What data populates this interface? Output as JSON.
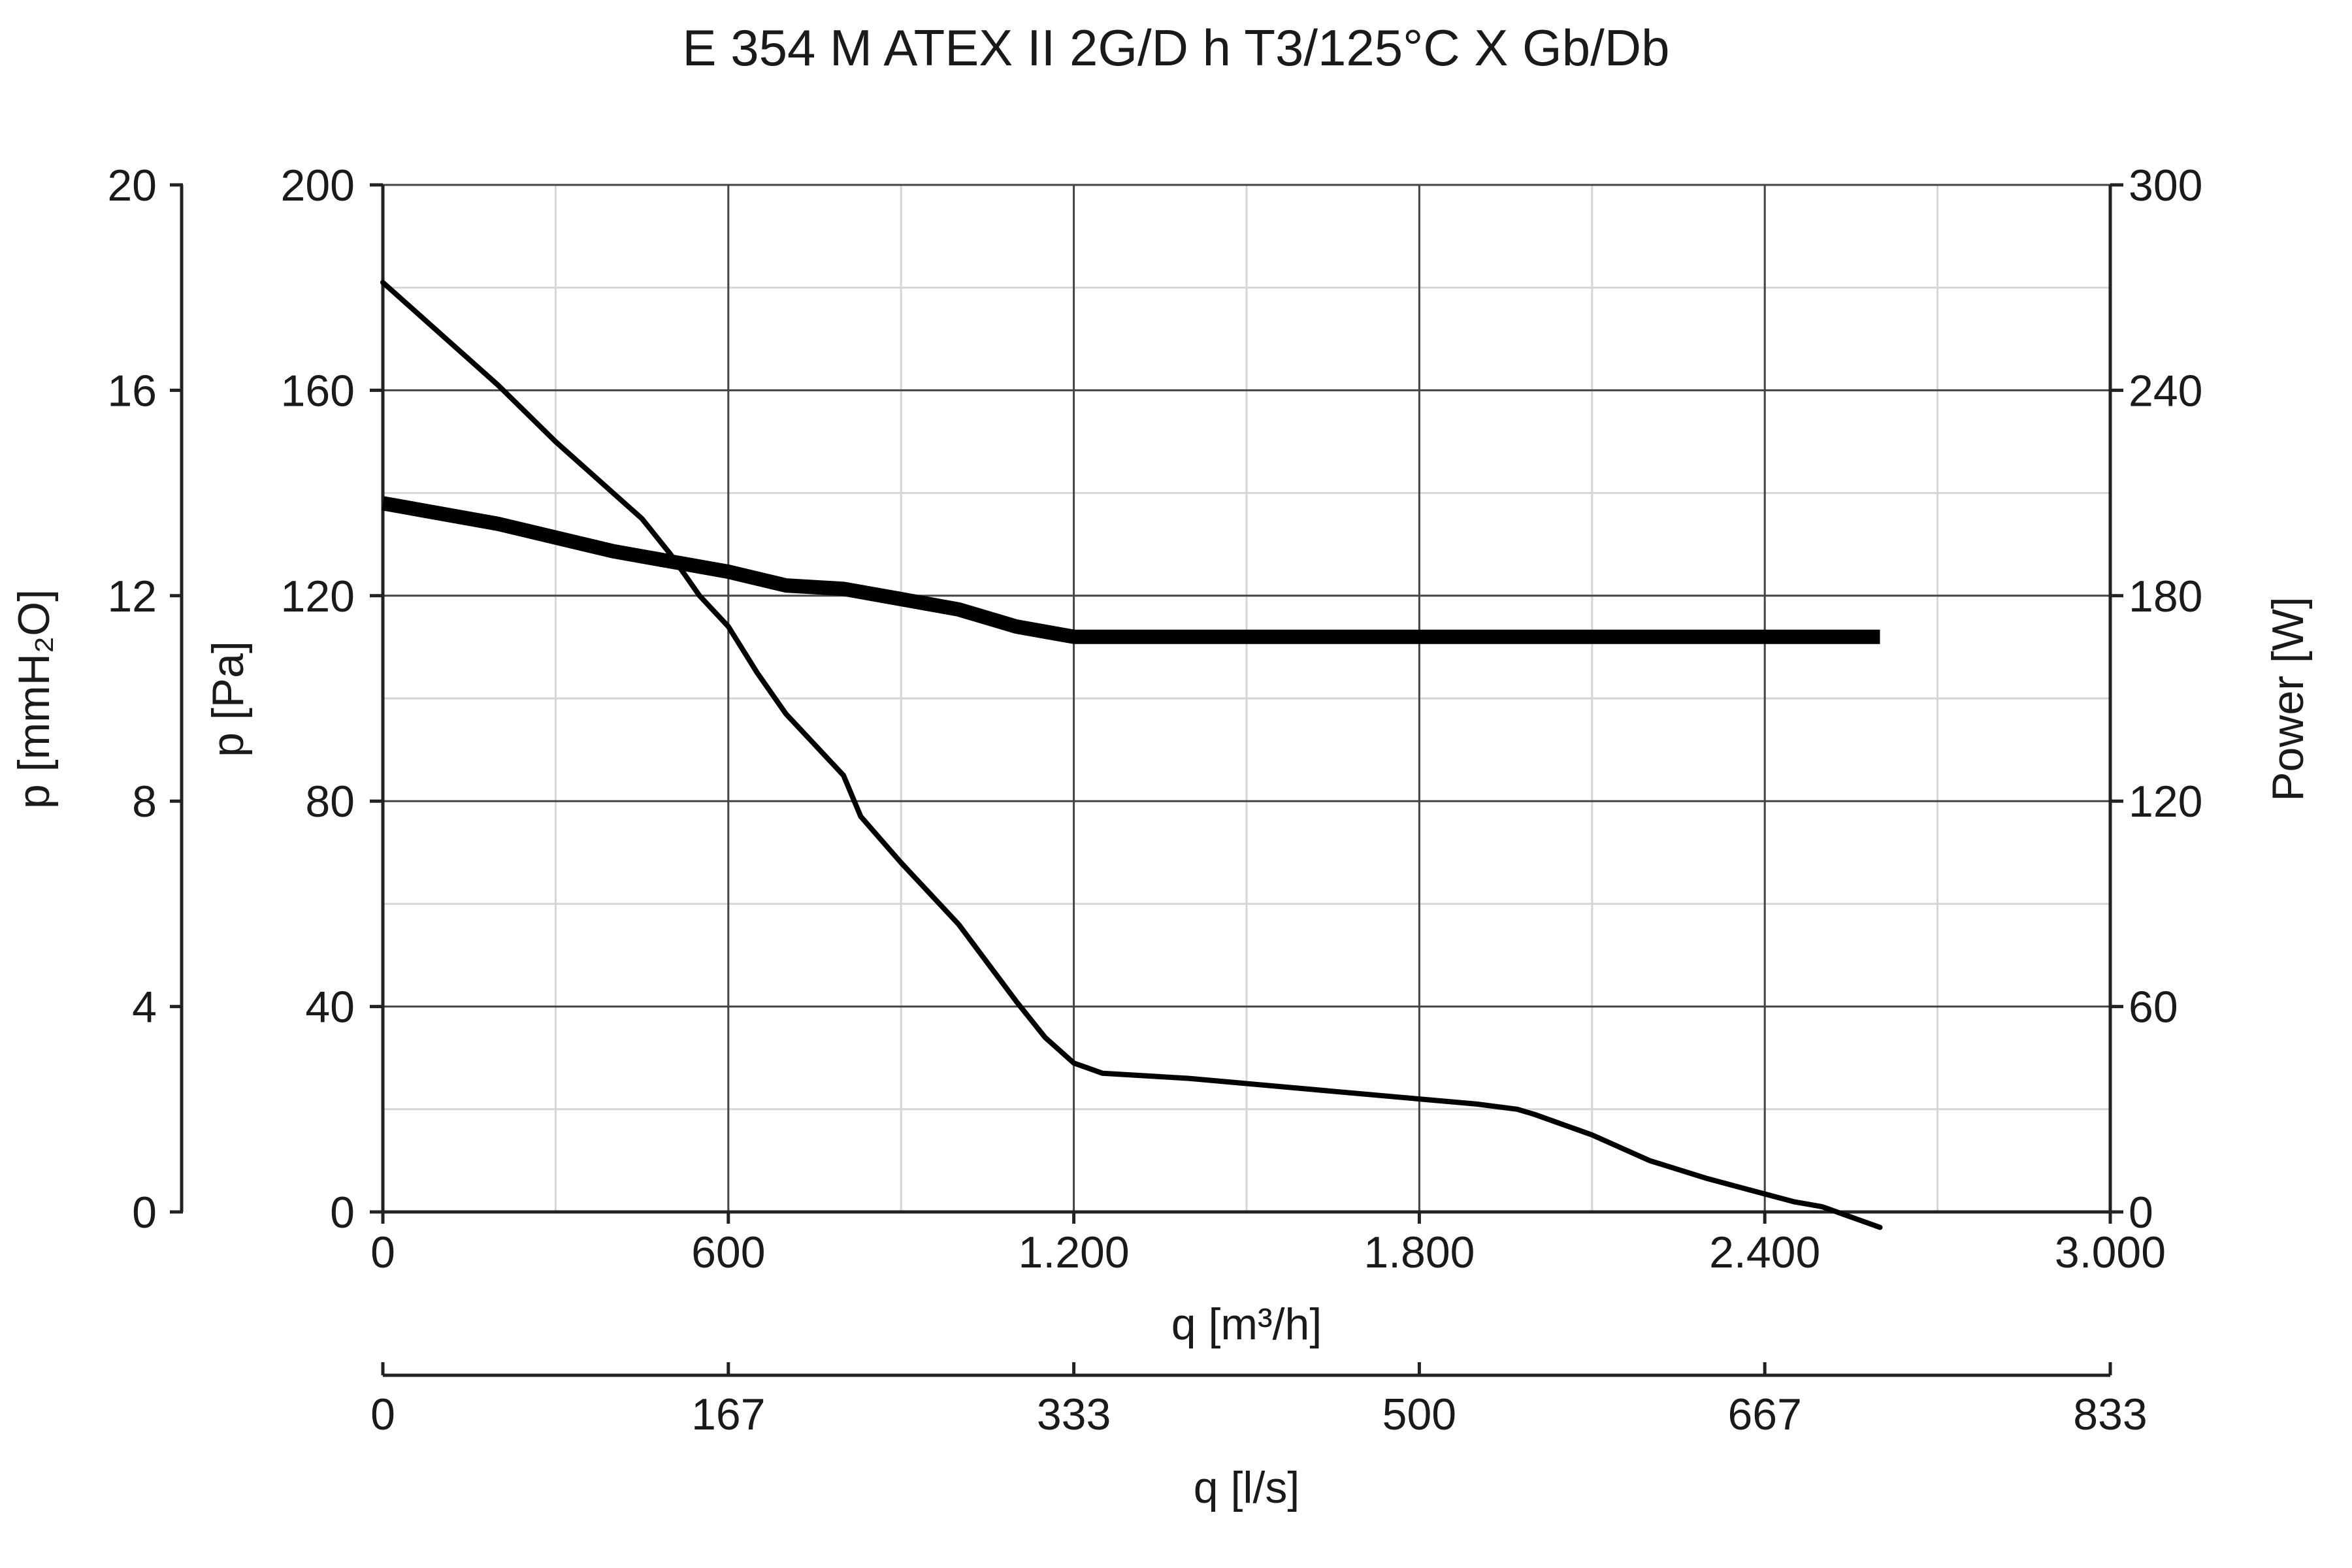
{
  "chart_data": {
    "type": "line",
    "title": "E 354 M ATEX II 2G/D h T3/125°C X Gb/Db",
    "xlabel": "q [m³/h]",
    "xlabel_secondary": "q [l/s]",
    "ylabel": "p [Pa]",
    "ylabel_secondary": "p [mmH₂O]",
    "ylabel_right": "Power [W]",
    "xlim": [
      0,
      3000
    ],
    "ylim": [
      0,
      200
    ],
    "ylim_secondary": [
      0,
      20
    ],
    "ylim_right": [
      0,
      300
    ],
    "x_ticks": [
      "0",
      "600",
      "1.200",
      "1.800",
      "2.400",
      "3.000"
    ],
    "x_ticks_secondary": [
      "0",
      "167",
      "333",
      "500",
      "667",
      "833"
    ],
    "y_ticks": [
      "0",
      "40",
      "80",
      "120",
      "160",
      "200"
    ],
    "y_ticks_secondary": [
      "0",
      "4",
      "8",
      "12",
      "16",
      "20"
    ],
    "y_ticks_right": [
      "0",
      "60",
      "120",
      "180",
      "240",
      "300"
    ],
    "grid": true,
    "legend": "none",
    "series": [
      {
        "axis": "left",
        "x": [
          0,
          100,
          200,
          300,
          400,
          450,
          500,
          550,
          600,
          650,
          700,
          750,
          800,
          830,
          900,
          1000,
          1100,
          1150,
          1200,
          1250,
          1400,
          1600,
          1800,
          1900,
          1970,
          2000,
          2100,
          2200,
          2300,
          2400,
          2450,
          2500,
          2550,
          2600
        ],
        "y": [
          181,
          171,
          161,
          150,
          140,
          135,
          128,
          120,
          114,
          105,
          97,
          91,
          85,
          77,
          68,
          56,
          41,
          34,
          29,
          27,
          26,
          24,
          22,
          21,
          20,
          19,
          15,
          10,
          6.5,
          3.5,
          2,
          1,
          -1,
          -3
        ]
      },
      {
        "axis": "right",
        "x": [
          0,
          200,
          400,
          600,
          700,
          800,
          900,
          1000,
          1100,
          1200,
          2600
        ],
        "y": [
          207,
          201,
          193,
          187,
          183,
          182,
          179,
          176,
          171,
          168,
          168
        ]
      }
    ]
  }
}
